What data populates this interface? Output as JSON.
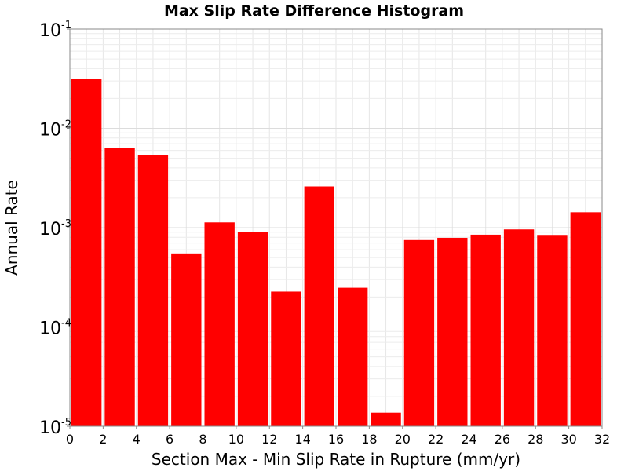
{
  "chart_data": {
    "type": "bar",
    "title": "Max Slip Rate Difference Histogram",
    "xlabel": "Section Max - Min Slip Rate in Rupture (mm/yr)",
    "ylabel": "Annual Rate",
    "y_scale": "log",
    "ylim": [
      1e-05,
      0.1
    ],
    "xlim": [
      0,
      32
    ],
    "bin_width": 2,
    "x_ticks": [
      "0",
      "2",
      "4",
      "6",
      "8",
      "10",
      "12",
      "14",
      "16",
      "18",
      "20",
      "22",
      "24",
      "26",
      "28",
      "30",
      "32"
    ],
    "y_ticks": [
      {
        "base": "10",
        "exp": "-5"
      },
      {
        "base": "10",
        "exp": "-4"
      },
      {
        "base": "10",
        "exp": "-3"
      },
      {
        "base": "10",
        "exp": "-2"
      },
      {
        "base": "10",
        "exp": "-1"
      }
    ],
    "grid": true,
    "bar_color": "#ff0000",
    "categories": [
      "1",
      "3",
      "5",
      "7",
      "9",
      "11",
      "13",
      "15",
      "17",
      "19",
      "21",
      "23",
      "25",
      "27",
      "29",
      "31"
    ],
    "values": [
      0.0315,
      0.0064,
      0.0054,
      0.00055,
      0.00113,
      0.00091,
      0.000227,
      0.0026,
      0.000248,
      1.37e-05,
      0.00075,
      0.00079,
      0.00085,
      0.00096,
      0.00083,
      0.00143
    ]
  }
}
